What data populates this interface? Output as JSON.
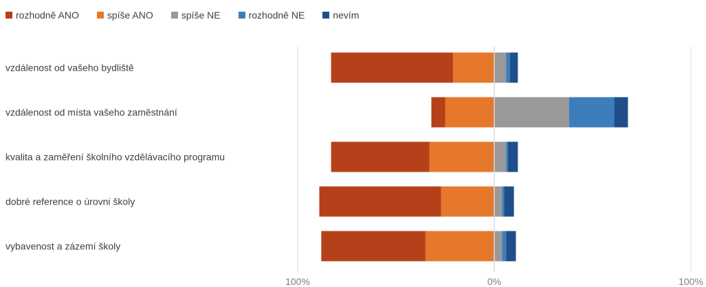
{
  "chart_data": {
    "type": "bar",
    "orientation": "horizontal",
    "stacked": "diverging",
    "categories": [
      "vzdálenost od vašeho bydliště",
      "vzdálenost od místa vašeho zaměstnání",
      "kvalita a zaměření školního vzdělávacího programu",
      "dobré reference o úrovni školy",
      "vybavenost a zázemí školy"
    ],
    "series": [
      {
        "name": "rozhodně ANO",
        "color": "#B5411A",
        "values": [
          62,
          7,
          50,
          62,
          53
        ]
      },
      {
        "name": "spíše ANO",
        "color": "#E5782B",
        "values": [
          21,
          25,
          33,
          27,
          35
        ]
      },
      {
        "name": "spíše NE",
        "color": "#999999",
        "values": [
          6,
          38,
          6,
          4,
          4
        ]
      },
      {
        "name": "rozhodně NE",
        "color": "#3E7DBC",
        "values": [
          2,
          23,
          1,
          1,
          2
        ]
      },
      {
        "name": "nevím",
        "color": "#1F4E8A",
        "values": [
          4,
          7,
          5,
          5,
          5
        ]
      }
    ],
    "negative_series": [
      "rozhodně ANO",
      "spíše ANO"
    ],
    "xlim": [
      -100,
      100
    ],
    "x_ticks": [
      {
        "value": -100,
        "label": "100%"
      },
      {
        "value": 0,
        "label": "0%"
      },
      {
        "value": 100,
        "label": "100%"
      }
    ],
    "legend_position": "top-left",
    "grid": false
  }
}
